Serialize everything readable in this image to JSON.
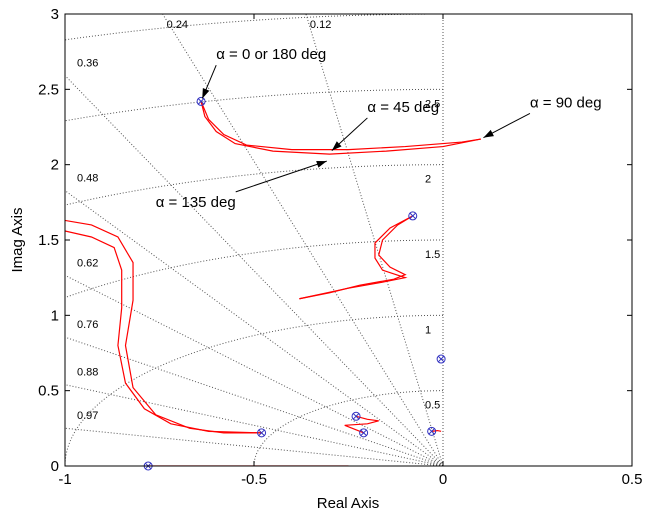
{
  "chart_data": {
    "type": "line",
    "title": "",
    "xlabel": "Real Axis",
    "ylabel": "Imag Axis",
    "xlim": [
      -1,
      0.5
    ],
    "ylim": [
      0,
      3
    ],
    "x_ticks": [
      -1,
      -0.5,
      0,
      0.5
    ],
    "x_tick_labels": [
      "-1",
      "-0.5",
      "0",
      "0.5"
    ],
    "y_ticks": [
      0,
      0.5,
      1,
      1.5,
      2,
      2.5,
      3
    ],
    "y_tick_labels": [
      "0",
      "0.5",
      "1",
      "1.5",
      "2",
      "2.5",
      "3"
    ],
    "grid": "s-plane damping and natural-frequency grid (dotted)",
    "colors": {
      "locus": "#ff0000",
      "marker": "#3030c0",
      "grid": "#555555",
      "axes": "#000000"
    },
    "damping_grid": [
      {
        "zeta": 0.97,
        "label": "0.97"
      },
      {
        "zeta": 0.88,
        "label": "0.88"
      },
      {
        "zeta": 0.76,
        "label": "0.76"
      },
      {
        "zeta": 0.62,
        "label": "0.62"
      },
      {
        "zeta": 0.48,
        "label": "0.48"
      },
      {
        "zeta": 0.36,
        "label": "0.36"
      },
      {
        "zeta": 0.24,
        "label": "0.24"
      },
      {
        "zeta": 0.12,
        "label": "0.12"
      }
    ],
    "frequency_grid": [
      {
        "wn": 0.5,
        "label": "0.5"
      },
      {
        "wn": 1,
        "label": "1"
      },
      {
        "wn": 1.5,
        "label": "1.5"
      },
      {
        "wn": 2,
        "label": "2"
      },
      {
        "wn": 2.5,
        "label": "2.5"
      },
      {
        "wn": 3,
        "label": ""
      }
    ],
    "series": [
      {
        "points": [
          [
            -0.64,
            2.42
          ],
          [
            -0.63,
            2.32
          ],
          [
            -0.6,
            2.22
          ],
          [
            -0.55,
            2.14
          ],
          [
            -0.45,
            2.09
          ],
          [
            -0.3,
            2.07
          ],
          [
            -0.15,
            2.09
          ],
          [
            0,
            2.12
          ],
          [
            0.1,
            2.17
          ]
        ]
      },
      {
        "points": [
          [
            -0.64,
            2.42
          ],
          [
            -0.62,
            2.3
          ],
          [
            -0.58,
            2.2
          ],
          [
            -0.52,
            2.13
          ],
          [
            -0.4,
            2.1
          ],
          [
            -0.25,
            2.1
          ],
          [
            -0.1,
            2.12
          ],
          [
            0.05,
            2.15
          ],
          [
            0.1,
            2.17
          ]
        ]
      },
      {
        "points": [
          [
            -1.0,
            1.63
          ],
          [
            -0.93,
            1.6
          ],
          [
            -0.86,
            1.52
          ],
          [
            -0.82,
            1.35
          ],
          [
            -0.82,
            1.1
          ],
          [
            -0.84,
            0.8
          ],
          [
            -0.82,
            0.52
          ],
          [
            -0.76,
            0.34
          ],
          [
            -0.67,
            0.25
          ],
          [
            -0.58,
            0.22
          ],
          [
            -0.48,
            0.22
          ]
        ]
      },
      {
        "points": [
          [
            -1.0,
            1.56
          ],
          [
            -0.93,
            1.52
          ],
          [
            -0.87,
            1.45
          ],
          [
            -0.85,
            1.3
          ],
          [
            -0.85,
            1.05
          ],
          [
            -0.86,
            0.8
          ],
          [
            -0.84,
            0.55
          ],
          [
            -0.79,
            0.38
          ],
          [
            -0.72,
            0.28
          ],
          [
            -0.62,
            0.23
          ],
          [
            -0.48,
            0.22
          ]
        ]
      },
      {
        "points": [
          [
            -0.08,
            1.66
          ],
          [
            -0.12,
            1.6
          ],
          [
            -0.16,
            1.5
          ],
          [
            -0.17,
            1.4
          ],
          [
            -0.14,
            1.32
          ],
          [
            -0.1,
            1.27
          ],
          [
            -0.13,
            1.24
          ],
          [
            -0.22,
            1.2
          ],
          [
            -0.3,
            1.15
          ],
          [
            -0.38,
            1.11
          ]
        ]
      },
      {
        "points": [
          [
            -0.08,
            1.66
          ],
          [
            -0.14,
            1.58
          ],
          [
            -0.18,
            1.48
          ],
          [
            -0.18,
            1.38
          ],
          [
            -0.16,
            1.3
          ],
          [
            -0.1,
            1.25
          ],
          [
            -0.16,
            1.22
          ],
          [
            -0.25,
            1.18
          ],
          [
            -0.38,
            1.11
          ]
        ]
      },
      {
        "points": [
          [
            -0.23,
            0.33
          ],
          [
            -0.2,
            0.31
          ],
          [
            -0.17,
            0.3
          ],
          [
            -0.2,
            0.28
          ],
          [
            -0.26,
            0.27
          ],
          [
            -0.21,
            0.22
          ]
        ]
      },
      {
        "points": [
          [
            -0.78,
            0.0
          ],
          [
            -0.6,
            0.0
          ],
          [
            -0.4,
            0.0
          ],
          [
            -0.25,
            0.0
          ]
        ]
      },
      {
        "points": [
          [
            -0.03,
            0.23
          ],
          [
            -0.015,
            0.235
          ],
          [
            -0.005,
            0.23
          ]
        ]
      }
    ],
    "poles_zeros": [
      [
        -0.64,
        2.42
      ],
      [
        -0.08,
        1.66
      ],
      [
        -0.48,
        0.22
      ],
      [
        -0.23,
        0.33
      ],
      [
        -0.21,
        0.22
      ],
      [
        -0.03,
        0.23
      ],
      [
        -0.005,
        0.71
      ],
      [
        -0.78,
        0.0
      ]
    ],
    "annotations": [
      {
        "text": "α = 0 or 180 deg",
        "at": [
          -0.64,
          2.42
        ],
        "text_pos": [
          -0.6,
          2.7
        ]
      },
      {
        "text": "α = 45 deg",
        "at": [
          -0.3,
          2.08
        ],
        "text_pos": [
          -0.2,
          2.35
        ]
      },
      {
        "text": "α = 90 deg",
        "at": [
          0.1,
          2.17
        ],
        "text_pos": [
          0.23,
          2.38
        ]
      },
      {
        "text": "α = 135 deg",
        "at": [
          -0.3,
          2.03
        ],
        "text_pos": [
          -0.76,
          1.72
        ]
      }
    ]
  }
}
